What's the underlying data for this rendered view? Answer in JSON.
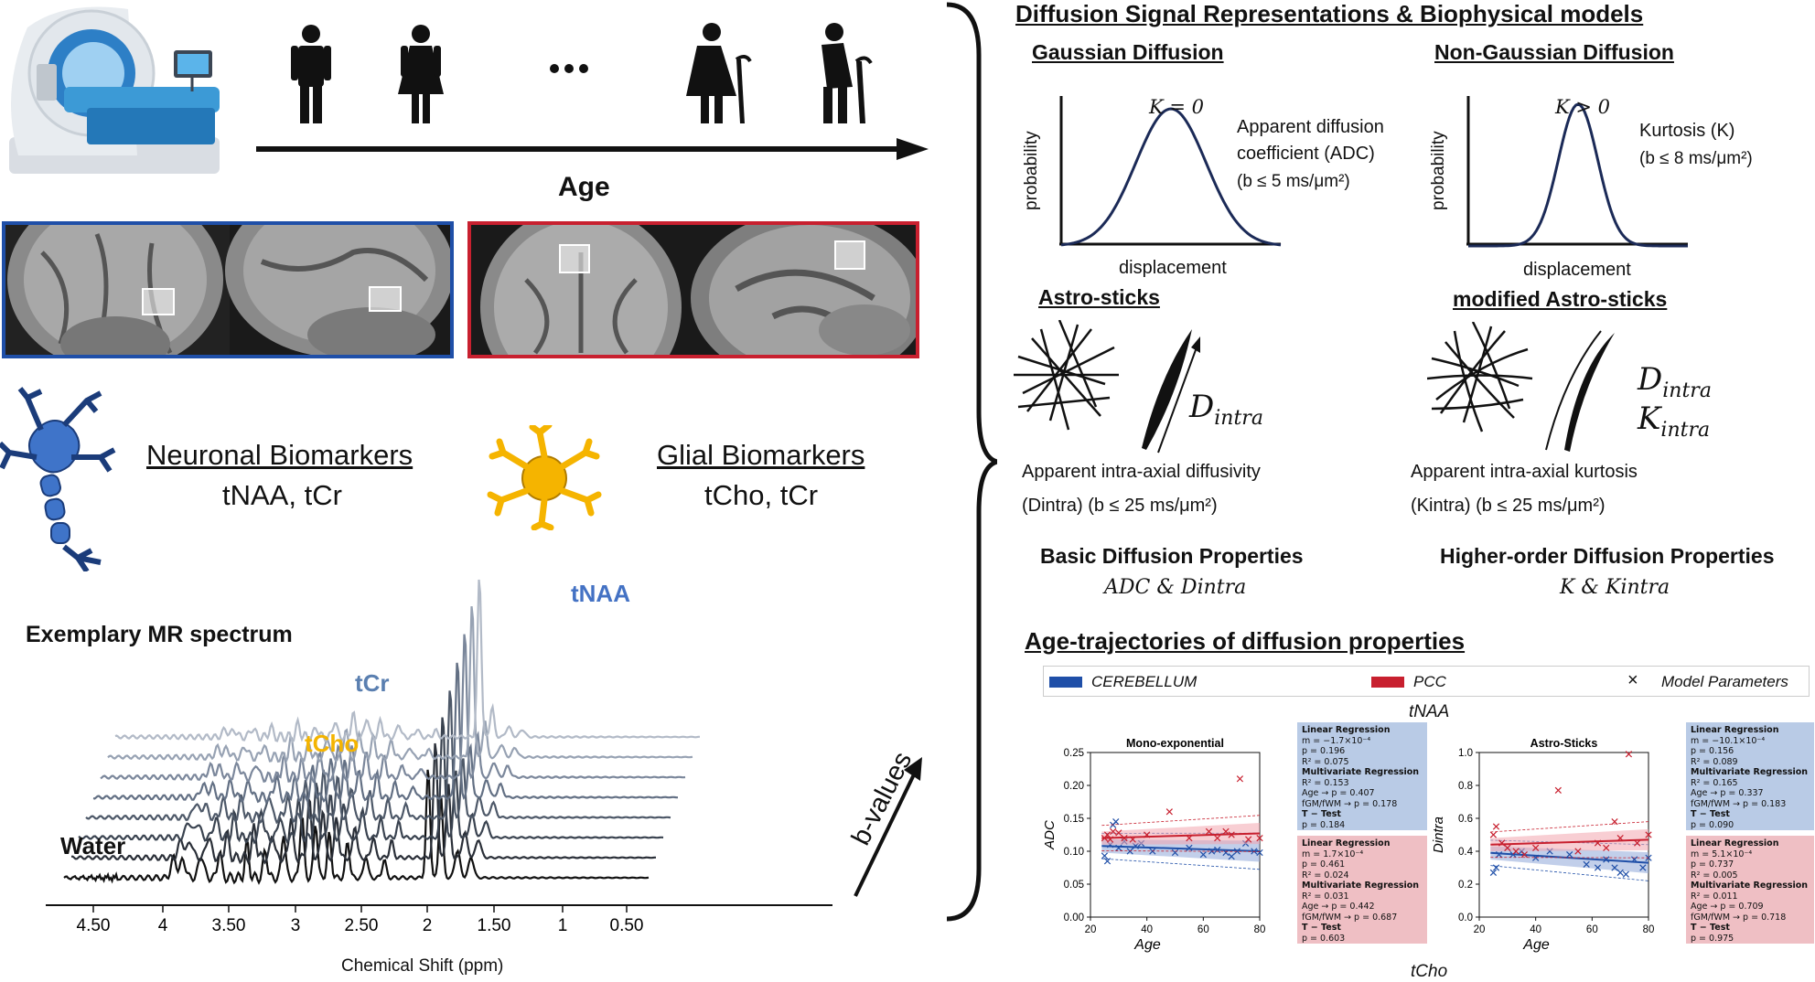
{
  "left": {
    "age_label": "Age",
    "neuronal": {
      "title": "Neuronal Biomarkers",
      "metabolites": "tNAA, tCr"
    },
    "glial": {
      "title": "Glial Biomarkers",
      "metabolites": "tCho, tCr"
    },
    "spectrum": {
      "title": "Exemplary MR spectrum",
      "xlabel": "Chemical Shift (ppm)",
      "ticks": [
        "4.50",
        "4",
        "3.50",
        "3",
        "2.50",
        "2",
        "1.50",
        "1",
        "0.50"
      ],
      "peaks": {
        "tNAA": "tNAA",
        "tCr": "tCr",
        "tCho": "tCho",
        "water": "Water"
      },
      "bvalues": "b-values",
      "colors": {
        "tNAA": "#4472c4",
        "tCr": "#5a7fb0",
        "tCho": "#f4b400"
      }
    }
  },
  "right": {
    "header": "Diffusion Signal Representations & Biophysical models",
    "gaussian": {
      "title": "Gaussian Diffusion",
      "k_label": "K = 0",
      "desc1": "Apparent diffusion",
      "desc2": "coefficient (ADC)",
      "desc3": "(b ≤ 5 ms/μm²)",
      "ylabel": "probability",
      "xlabel": "displacement"
    },
    "nongaussian": {
      "title": "Non-Gaussian Diffusion",
      "k_label": "K > 0",
      "desc1": "Kurtosis (K)",
      "desc2": "(b ≤ 8 ms/μm²)",
      "ylabel": "probability",
      "xlabel": "displacement"
    },
    "astro": {
      "title": "Astro-sticks",
      "symbol": "D",
      "symbol_sub": "intra",
      "desc1": "Apparent intra-axial diffusivity",
      "desc2": "(Dintra) (b ≤ 25 ms/μm²)"
    },
    "modastro": {
      "title": "modified Astro-sticks",
      "symbol1": "D",
      "symbol1_sub": "intra",
      "symbol2": "K",
      "symbol2_sub": "intra",
      "desc1": "Apparent intra-axial kurtosis",
      "desc2": "(Kintra) (b ≤ 25 ms/μm²)"
    },
    "basic": {
      "title": "Basic Diffusion Properties",
      "formula": "ADC & Dintra"
    },
    "higher": {
      "title": "Higher-order Diffusion Properties",
      "formula": "K & Kintra"
    },
    "traj": {
      "title": "Age-trajectories of diffusion properties",
      "legend": {
        "cerebellum": "CEREBELLUM",
        "pcc": "PCC",
        "model": "Model Parameters"
      },
      "metabolite_top": "tNAA",
      "metabolite_bottom": "tCho",
      "colors": {
        "cerebellum": "#1f4fa8",
        "pcc": "#c8202f"
      }
    }
  },
  "chart_data": [
    {
      "type": "scatter",
      "title": "Mono-exponential",
      "xlabel": "Age",
      "ylabel": "ADC",
      "xlim": [
        20,
        80
      ],
      "ylim": [
        0.0,
        0.25
      ],
      "xticks": [
        "20",
        "40",
        "60",
        "80"
      ],
      "yticks": [
        "0.00",
        "0.05",
        "0.10",
        "0.15",
        "0.20",
        "0.25"
      ],
      "series": [
        {
          "name": "CEREBELLUM",
          "points": [
            [
              25,
              0.093
            ],
            [
              26,
              0.085
            ],
            [
              27,
              0.11
            ],
            [
              28,
              0.14
            ],
            [
              29,
              0.145
            ],
            [
              30,
              0.105
            ],
            [
              32,
              0.115
            ],
            [
              34,
              0.1
            ],
            [
              36,
              0.108
            ],
            [
              38,
              0.112
            ],
            [
              42,
              0.1
            ],
            [
              50,
              0.098
            ],
            [
              55,
              0.105
            ],
            [
              60,
              0.095
            ],
            [
              63,
              0.1
            ],
            [
              65,
              0.102
            ],
            [
              68,
              0.098
            ],
            [
              70,
              0.092
            ],
            [
              72,
              0.1
            ],
            [
              75,
              0.112
            ],
            [
              78,
              0.1
            ],
            [
              80,
              0.098
            ]
          ],
          "fit": [
            [
              24,
              0.108
            ],
            [
              80,
              0.1
            ]
          ]
        },
        {
          "name": "PCC",
          "points": [
            [
              25,
              0.12
            ],
            [
              26,
              0.125
            ],
            [
              27,
              0.118
            ],
            [
              28,
              0.13
            ],
            [
              30,
              0.128
            ],
            [
              32,
              0.12
            ],
            [
              35,
              0.118
            ],
            [
              40,
              0.125
            ],
            [
              48,
              0.16
            ],
            [
              55,
              0.12
            ],
            [
              62,
              0.13
            ],
            [
              65,
              0.12
            ],
            [
              68,
              0.13
            ],
            [
              70,
              0.125
            ],
            [
              73,
              0.21
            ],
            [
              76,
              0.118
            ],
            [
              80,
              0.12
            ]
          ],
          "fit": [
            [
              24,
              0.12
            ],
            [
              80,
              0.127
            ]
          ]
        }
      ],
      "stats": {
        "cerebellum": [
          "Linear Regression",
          "m = −1.7×10⁻⁴",
          "p = 0.196",
          "R² = 0.075",
          "Multivariate Regression",
          "R² = 0.153",
          "Age → p = 0.407",
          "fGM/fWM → p = 0.178",
          "T − Test",
          "p = 0.184"
        ],
        "pcc": [
          "Linear Regression",
          "m = 1.7×10⁻⁴",
          "p = 0.461",
          "R² = 0.024",
          "Multivariate Regression",
          "R² = 0.031",
          "Age → p = 0.442",
          "fGM/fWM → p = 0.687",
          "T − Test",
          "p = 0.603"
        ]
      }
    },
    {
      "type": "scatter",
      "title": "Astro-Sticks",
      "xlabel": "Age",
      "ylabel": "Dintra",
      "xlim": [
        20,
        80
      ],
      "ylim": [
        0.0,
        1.0
      ],
      "xticks": [
        "20",
        "40",
        "60",
        "80"
      ],
      "yticks": [
        "0.0",
        "0.2",
        "0.4",
        "0.6",
        "0.8",
        "1.0"
      ],
      "series": [
        {
          "name": "CEREBELLUM",
          "points": [
            [
              25,
              0.27
            ],
            [
              26,
              0.3
            ],
            [
              27,
              0.38
            ],
            [
              28,
              0.45
            ],
            [
              30,
              0.42
            ],
            [
              32,
              0.38
            ],
            [
              35,
              0.4
            ],
            [
              40,
              0.36
            ],
            [
              45,
              0.4
            ],
            [
              52,
              0.38
            ],
            [
              58,
              0.32
            ],
            [
              62,
              0.3
            ],
            [
              65,
              0.35
            ],
            [
              68,
              0.3
            ],
            [
              70,
              0.27
            ],
            [
              72,
              0.26
            ],
            [
              75,
              0.35
            ],
            [
              78,
              0.3
            ],
            [
              80,
              0.36
            ]
          ],
          "fit": [
            [
              24,
              0.39
            ],
            [
              80,
              0.33
            ]
          ]
        },
        {
          "name": "PCC",
          "points": [
            [
              25,
              0.5
            ],
            [
              26,
              0.55
            ],
            [
              28,
              0.45
            ],
            [
              30,
              0.42
            ],
            [
              33,
              0.4
            ],
            [
              36,
              0.38
            ],
            [
              40,
              0.42
            ],
            [
              48,
              0.77
            ],
            [
              55,
              0.4
            ],
            [
              62,
              0.45
            ],
            [
              65,
              0.42
            ],
            [
              68,
              0.58
            ],
            [
              70,
              0.48
            ],
            [
              73,
              0.99
            ],
            [
              76,
              0.45
            ],
            [
              80,
              0.5
            ]
          ],
          "fit": [
            [
              24,
              0.44
            ],
            [
              80,
              0.47
            ]
          ]
        }
      ],
      "stats": {
        "cerebellum": [
          "Linear Regression",
          "m = −10.1×10⁻⁴",
          "p = 0.156",
          "R² = 0.089",
          "Multivariate Regression",
          "R² = 0.165",
          "Age → p = 0.337",
          "fGM/fWM → p = 0.183",
          "T − Test",
          "p = 0.090"
        ],
        "pcc": [
          "Linear Regression",
          "m = 5.1×10⁻⁴",
          "p = 0.737",
          "R² = 0.005",
          "Multivariate Regression",
          "R² = 0.011",
          "Age → p = 0.709",
          "fGM/fWM → p = 0.718",
          "T − Test",
          "p = 0.975"
        ]
      }
    }
  ]
}
